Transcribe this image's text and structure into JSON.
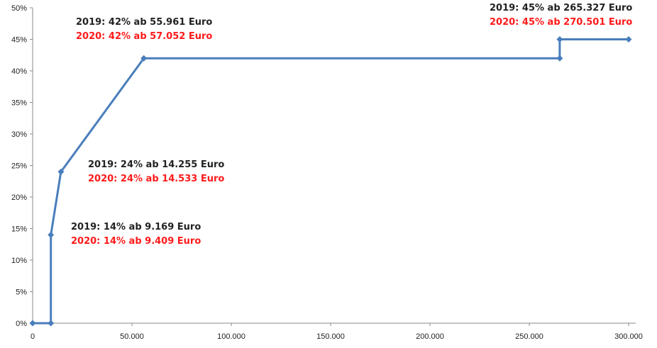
{
  "chart_data": {
    "type": "line",
    "title": "",
    "xlabel": "",
    "ylabel": "",
    "xlim": [
      0,
      300000
    ],
    "ylim": [
      0,
      50
    ],
    "x_ticks": [
      0,
      50000,
      100000,
      150000,
      200000,
      250000,
      300000
    ],
    "x_tick_labels": [
      "0",
      "50.000",
      "100.000",
      "150.000",
      "200.000",
      "250.000",
      "300.000"
    ],
    "y_ticks": [
      0,
      5,
      10,
      15,
      20,
      25,
      30,
      35,
      40,
      45,
      50
    ],
    "y_tick_labels": [
      "0%",
      "5%",
      "10%",
      "15%",
      "20%",
      "25%",
      "30%",
      "35%",
      "40%",
      "45%",
      "50%"
    ],
    "grid": false,
    "legend": "none",
    "series": [
      {
        "color": "#4a7ebb",
        "marker": "diamond",
        "points": [
          {
            "x": 0,
            "y": 0
          },
          {
            "x": 9169,
            "y": 0
          },
          {
            "x": 9169,
            "y": 14
          },
          {
            "x": 14255,
            "y": 24
          },
          {
            "x": 55961,
            "y": 42
          },
          {
            "x": 265327,
            "y": 42
          },
          {
            "x": 265327,
            "y": 45
          },
          {
            "x": 300000,
            "y": 45
          }
        ]
      }
    ],
    "annotations": [
      {
        "lines": [
          {
            "text": "2019: 14% ab 9.169 Euro",
            "color": "#222222"
          },
          {
            "text": "2020: 14% ab 9.409 Euro",
            "color": "#ff1a1a"
          }
        ]
      },
      {
        "lines": [
          {
            "text": "2019: 24% ab 14.255 Euro",
            "color": "#222222"
          },
          {
            "text": "2020: 24% ab 14.533 Euro",
            "color": "#ff1a1a"
          }
        ]
      },
      {
        "lines": [
          {
            "text": "2019: 42% ab 55.961 Euro",
            "color": "#222222"
          },
          {
            "text": "2020: 42% ab 57.052 Euro",
            "color": "#ff1a1a"
          }
        ]
      },
      {
        "lines": [
          {
            "text": "2019: 45% ab 265.327 Euro",
            "color": "#222222"
          },
          {
            "text": "2020: 45% ab 270.501 Euro",
            "color": "#ff1a1a"
          }
        ]
      }
    ]
  }
}
